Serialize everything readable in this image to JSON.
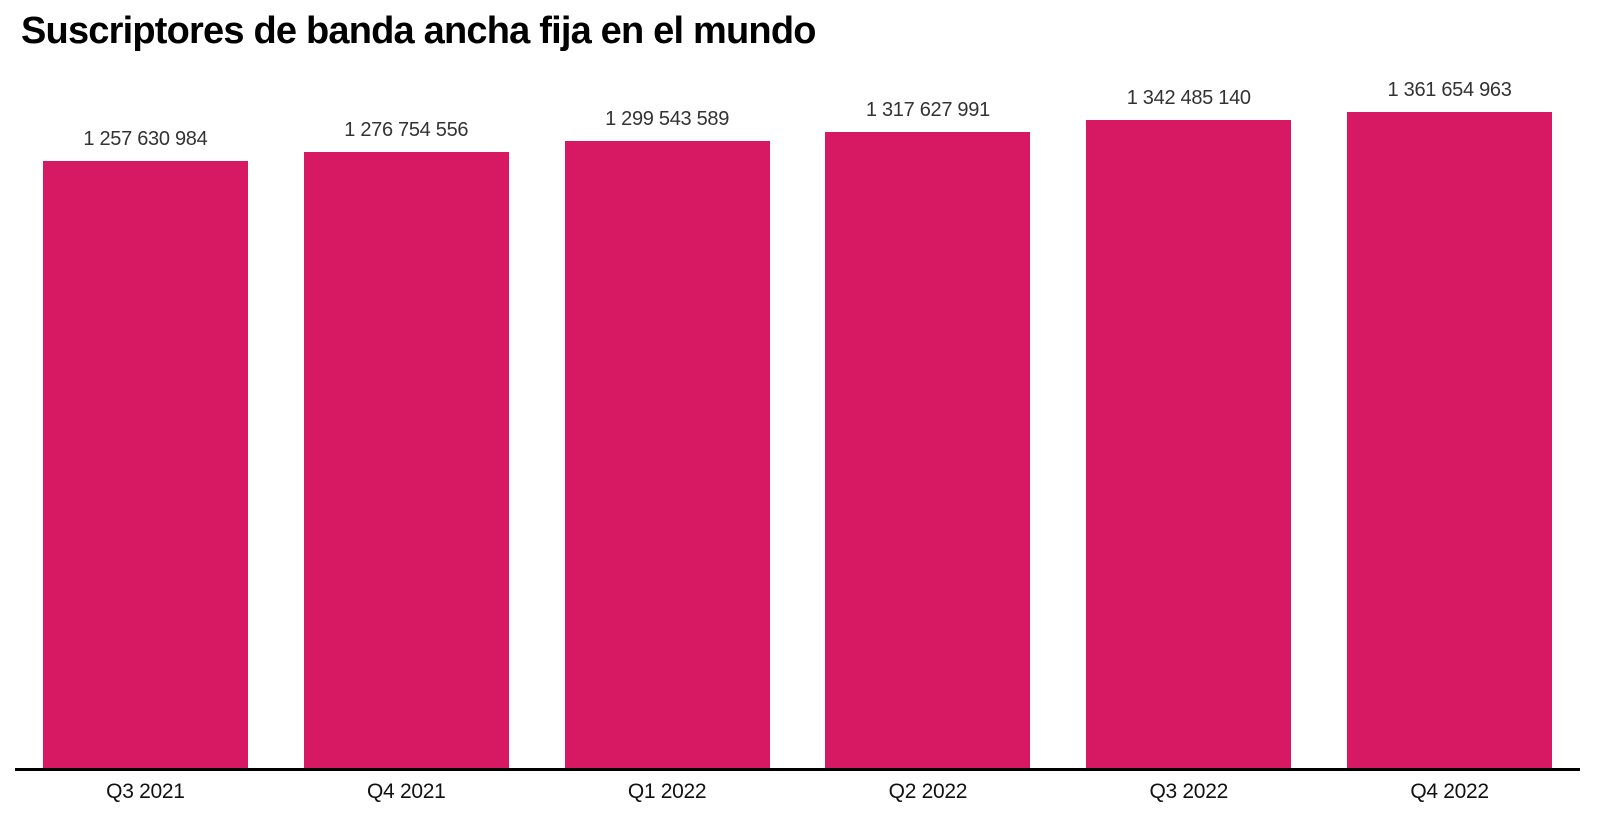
{
  "chart": {
    "title": "Suscriptores de banda ancha fija en el mundo",
    "bar_color": "#D71964",
    "axis_color": "#000000",
    "value_label_color": "#333333",
    "background_color": "#ffffff"
  },
  "chart_data": {
    "type": "bar",
    "title": "Suscriptores de banda ancha fija en el mundo",
    "categories": [
      "Q3 2021",
      "Q4 2021",
      "Q1 2022",
      "Q2 2022",
      "Q3 2022",
      "Q4 2022"
    ],
    "values": [
      1257630984,
      1276754556,
      1299543589,
      1317627991,
      1342485140,
      1361654963
    ],
    "value_labels": [
      "1 257 630 984",
      "1 276 754 556",
      "1 299 543 589",
      "1 317 627 991",
      "1 342 485 140",
      "1 361 654 963"
    ],
    "series_name": "Suscriptores",
    "xlabel": "",
    "ylabel": "",
    "ylim": [
      0,
      1361654963
    ],
    "grid": false,
    "legend": false,
    "orientation": "vertical",
    "bar_value_labels_visible": true
  }
}
